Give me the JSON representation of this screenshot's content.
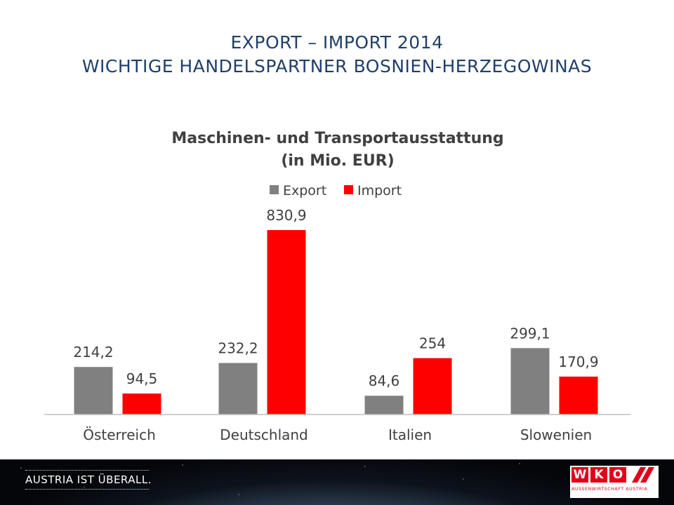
{
  "slide": {
    "title_line1": "EXPORT – IMPORT 2014",
    "title_line2": "WICHTIGE HANDELSPARTNER BOSNIEN-HERZEGOWINAS"
  },
  "chart_data": {
    "type": "bar",
    "title": "Maschinen- und Transportausstattung",
    "subtitle": "(in Mio. EUR)",
    "categories": [
      "Österreich",
      "Deutschland",
      "Italien",
      "Slowenien"
    ],
    "series": [
      {
        "name": "Export",
        "color": "#808080",
        "values": [
          214.2,
          232.2,
          84.6,
          299.1
        ],
        "labels": [
          "214,2",
          "232,2",
          "84,6",
          "299,1"
        ]
      },
      {
        "name": "Import",
        "color": "#ff0000",
        "values": [
          94.5,
          830.9,
          254,
          170.9
        ],
        "labels": [
          "94,5",
          "830,9",
          "254",
          "170,9"
        ]
      }
    ],
    "legend_position": "top",
    "grid": false,
    "ylim": [
      0,
      830.9
    ]
  },
  "footer": {
    "tagline": "AUSTRIA IST ÜBERALL.",
    "logo_letters": [
      "W",
      "K",
      "O"
    ],
    "logo_subtext": "AUSSENWIRTSCHAFT AUSTRIA"
  }
}
